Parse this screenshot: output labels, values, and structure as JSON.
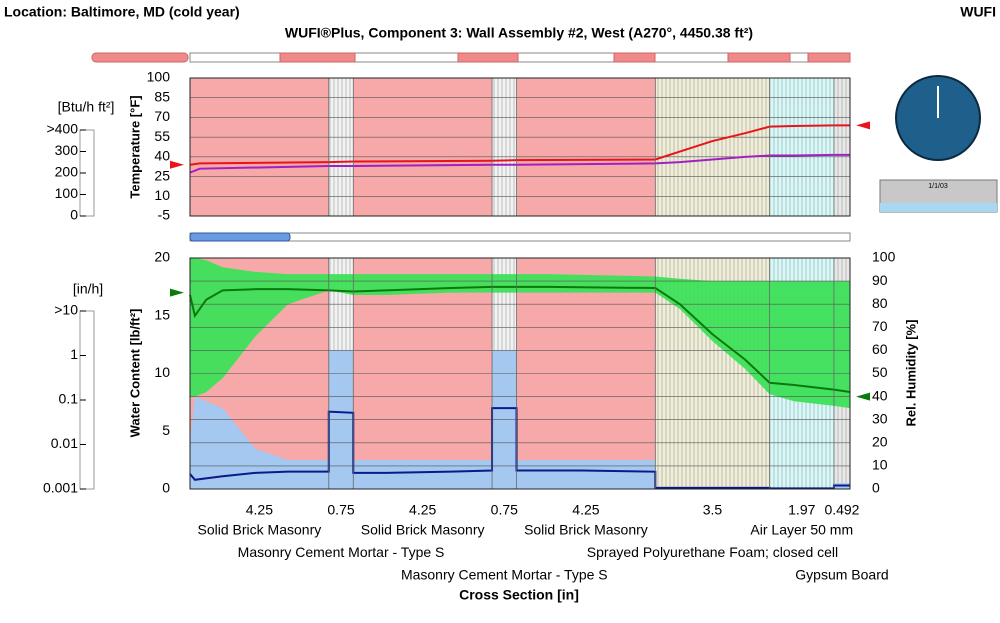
{
  "header": {
    "location": "Location: Baltimore, MD (cold year)",
    "program": "WUFI",
    "title": "WUFI®Plus, Component 3: Wall Assembly #2, West (A270°, 4450.38 ft²)"
  },
  "clock": {
    "date": "1/1/03"
  },
  "heat_flux": {
    "label": "[Btu/h ft²]",
    "lim": [
      0,
      400
    ],
    "ticks": [
      {
        "value": 400,
        "label": ">400"
      },
      300,
      200,
      100,
      0
    ]
  },
  "moisture_flux": {
    "label": "[in/h]",
    "lim": [
      0.001,
      10
    ],
    "log_scale": true,
    "ticks": [
      {
        "value": 10,
        "label": ">10"
      },
      1,
      0.1,
      0.01,
      0.001
    ]
  },
  "temperature_panel": {
    "ylabel": "Temperature [°F]",
    "ylim": [
      -5,
      100
    ],
    "yticks": [
      -5,
      10,
      25,
      40,
      55,
      70,
      85,
      100
    ],
    "grid": true,
    "x": [
      0,
      0.3,
      4.25,
      5,
      9.25,
      10,
      14.25,
      15,
      16,
      17,
      17.75,
      18.5,
      19.72,
      20.212
    ],
    "series": [
      {
        "color": "#e8141c",
        "values": [
          34,
          35,
          36,
          36.5,
          37,
          37.5,
          38,
          44,
          52,
          58,
          63,
          63.5,
          64,
          64
        ]
      },
      {
        "color": "#a020c0",
        "values": [
          28,
          31,
          33,
          33,
          34,
          34,
          35,
          36,
          38,
          40,
          41,
          41,
          41.5,
          41.5
        ]
      }
    ],
    "boundary_left": 34,
    "boundary_right": 64
  },
  "moisture_panel": {
    "ylabel": "Water Content [lb/ft²]",
    "ylim": [
      0,
      20
    ],
    "yticks": [
      0,
      5,
      10,
      15,
      20
    ],
    "y2label": "Rel. Humidity [%]",
    "y2lim": [
      0,
      100
    ],
    "y2ticks": [
      0,
      10,
      20,
      30,
      40,
      50,
      60,
      70,
      80,
      90,
      100
    ],
    "grid": true,
    "rh_color": "#0a7a0a",
    "rh_band_color": "#3de05a",
    "wc_color": "#0a1a8a",
    "wc_band_color": "#a4c8f0",
    "rh_x": [
      0,
      0.15,
      0.5,
      1,
      2,
      3,
      4.25,
      5,
      6,
      8,
      9.25,
      10,
      11,
      14.25,
      15,
      16,
      17,
      17.75,
      18.5,
      19.72,
      20.212
    ],
    "rh": [
      84,
      75,
      82,
      86,
      86.5,
      86.5,
      86,
      85.5,
      86,
      87,
      87.5,
      87.5,
      87.5,
      87,
      80,
      67,
      56,
      46,
      45,
      43,
      42
    ],
    "rh_max": [
      100,
      100,
      99,
      96,
      94,
      93,
      93,
      93,
      93,
      93,
      93,
      93,
      93,
      92,
      91,
      90,
      90,
      90,
      90,
      90,
      90
    ],
    "rh_min": [
      40,
      40,
      42,
      48,
      66,
      80,
      86,
      84,
      84,
      85,
      85,
      85,
      85,
      85,
      78,
      64,
      52,
      41,
      38,
      36,
      35
    ],
    "wc_x": [
      0,
      0.15,
      1,
      2,
      3,
      4.25,
      4.25,
      5,
      5,
      6,
      8,
      9.25,
      9.25,
      10,
      10,
      12,
      14.25,
      14.25,
      17.75,
      17.75,
      19.72,
      19.72,
      20.212
    ],
    "wc": [
      1.3,
      0.8,
      1.1,
      1.4,
      1.5,
      1.5,
      6.7,
      6.6,
      1.4,
      1.4,
      1.5,
      1.6,
      7.0,
      7.0,
      1.6,
      1.6,
      1.5,
      0.1,
      0.1,
      0.05,
      0.05,
      0.3,
      0.3
    ],
    "wc_max": [
      4,
      8,
      7,
      3.5,
      2.5,
      2.5,
      12,
      12,
      2.5,
      2.5,
      2.5,
      2.5,
      12,
      12,
      2.5,
      2.5,
      2.5,
      0.2,
      0.2,
      0.1,
      0.1,
      0.5,
      0.5
    ],
    "rh_boundary_left": 85,
    "rh_boundary_right": 40
  },
  "cross_section": {
    "xlabel": "Cross Section [in]",
    "layers": [
      {
        "name": "Solid Brick Masonry",
        "thickness": 4.25,
        "color": "#f7a9a9",
        "hatched": false
      },
      {
        "name": "Masonry Cement Mortar - Type S",
        "thickness": 0.75,
        "color": "#f2f2f2",
        "hatched": true
      },
      {
        "name": "Solid Brick Masonry",
        "thickness": 4.25,
        "color": "#f7a9a9",
        "hatched": false
      },
      {
        "name": "Masonry Cement Mortar - Type S",
        "thickness": 0.75,
        "color": "#f2f2f2",
        "hatched": true
      },
      {
        "name": "Solid Brick Masonry",
        "thickness": 4.25,
        "color": "#f7a9a9",
        "hatched": false
      },
      {
        "name": "Sprayed Polyurethane Foam; closed cell",
        "thickness": 3.5,
        "color": "#f0eed6",
        "hatched": true
      },
      {
        "name": "Air Layer 50 mm",
        "thickness": 1.97,
        "color": "#d6fafa",
        "hatched": true
      },
      {
        "name": "Gypsum Board",
        "thickness": 0.492,
        "color": "#e8e8e8",
        "hatched": true
      }
    ]
  }
}
